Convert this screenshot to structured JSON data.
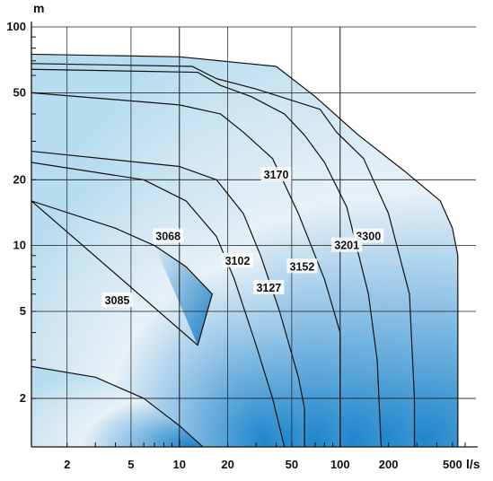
{
  "chart_data": {
    "type": "area",
    "title": "",
    "xlabel": "l/s",
    "ylabel": "m",
    "x_scale": "log",
    "y_scale": "log",
    "xlim": [
      1.2,
      700
    ],
    "ylim": [
      1.2,
      100
    ],
    "x_ticks": [
      2,
      5,
      10,
      20,
      50,
      100,
      200,
      500
    ],
    "y_ticks": [
      2,
      5,
      10,
      20,
      50,
      100
    ],
    "grid": true,
    "series": [
      {
        "name": "3300",
        "points": [
          [
            1.2,
            75
          ],
          [
            10,
            73
          ],
          [
            40,
            66
          ],
          [
            70,
            48
          ],
          [
            130,
            32
          ],
          [
            250,
            22
          ],
          [
            420,
            16
          ],
          [
            500,
            12
          ],
          [
            540,
            9
          ],
          [
            540,
            1.2
          ]
        ]
      },
      {
        "name": "3201",
        "points": [
          [
            1.2,
            68
          ],
          [
            12,
            66
          ],
          [
            17,
            58
          ],
          [
            30,
            52
          ],
          [
            75,
            42
          ],
          [
            95,
            33
          ],
          [
            140,
            25
          ],
          [
            200,
            14
          ],
          [
            270,
            6
          ],
          [
            290,
            2
          ],
          [
            290,
            1.2
          ]
        ]
      },
      {
        "name": "3170",
        "points": [
          [
            1.2,
            64
          ],
          [
            13,
            62
          ],
          [
            18,
            54
          ],
          [
            28,
            48
          ],
          [
            45,
            40
          ],
          [
            60,
            32
          ],
          [
            80,
            24
          ],
          [
            110,
            15
          ],
          [
            150,
            6
          ],
          [
            170,
            3
          ],
          [
            180,
            1.2
          ]
        ]
      },
      {
        "name": "3152",
        "points": [
          [
            1.2,
            50
          ],
          [
            10,
            44
          ],
          [
            18,
            40
          ],
          [
            25,
            33
          ],
          [
            38,
            25
          ],
          [
            55,
            14
          ],
          [
            80,
            7
          ],
          [
            100,
            4
          ],
          [
            100,
            1.2
          ]
        ]
      },
      {
        "name": "3127",
        "points": [
          [
            1.2,
            27
          ],
          [
            10,
            23
          ],
          [
            17,
            20
          ],
          [
            25,
            14
          ],
          [
            32,
            9
          ],
          [
            42,
            5
          ],
          [
            55,
            2.5
          ],
          [
            60,
            1.8
          ],
          [
            60,
            1.2
          ]
        ]
      },
      {
        "name": "3102",
        "points": [
          [
            1.2,
            24
          ],
          [
            6,
            20
          ],
          [
            11,
            16
          ],
          [
            17,
            11
          ],
          [
            22,
            7
          ],
          [
            30,
            3.5
          ],
          [
            38,
            2
          ],
          [
            45,
            1.2
          ]
        ]
      },
      {
        "name": "3068",
        "points": [
          [
            1.2,
            16
          ],
          [
            4,
            12
          ],
          [
            7,
            10
          ],
          [
            11,
            8
          ],
          [
            16,
            6
          ],
          [
            13,
            3.5
          ]
        ]
      },
      {
        "name": "3085",
        "points": [
          [
            1.2,
            2.8
          ],
          [
            3,
            2.5
          ],
          [
            6,
            2
          ],
          [
            10,
            1.5
          ],
          [
            14,
            1.2
          ]
        ]
      }
    ]
  }
}
